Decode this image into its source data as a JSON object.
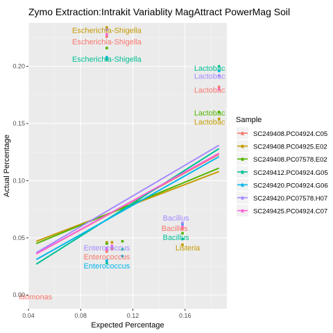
{
  "chart_data": {
    "type": "scatter",
    "title": "Zymo Extraction:Intrakit Variablity MagAttract PowerMag Soil",
    "xlabel": "Expected Percentage",
    "ylabel": "Actual Percentage",
    "xlim": [
      0.04,
      0.192
    ],
    "ylim": [
      -0.012,
      0.238
    ],
    "x_ticks": [
      0.04,
      0.08,
      0.12,
      0.16
    ],
    "x_tick_labels": [
      "0.04",
      "0.08",
      "0.12",
      "0.16"
    ],
    "y_ticks": [
      0.0,
      0.05,
      0.1,
      0.15,
      0.2
    ],
    "y_tick_labels": [
      "0.00",
      "0.05",
      "0.10",
      "0.15",
      "0.20"
    ],
    "grid": true,
    "legend": {
      "title": "Sample",
      "position": "right",
      "entries": [
        {
          "name": "SC249408.PC04924.C05",
          "color": "#F8766D"
        },
        {
          "name": "SC249408.PC04925.E02",
          "color": "#C49A00"
        },
        {
          "name": "SC249408.PC07578.E02",
          "color": "#53B400"
        },
        {
          "name": "SC249412.PC04924.G05",
          "color": "#00C094"
        },
        {
          "name": "SC249420.PC04924.G06",
          "color": "#00B6EB"
        },
        {
          "name": "SC249420.PC07578.H07",
          "color": "#A58AFF"
        },
        {
          "name": "SC249425.PC04924.C07",
          "color": "#FB61D7"
        }
      ]
    },
    "series": [
      {
        "name": "SC249408.PC04924.C05",
        "color": "#F8766D",
        "points": [
          [
            0.1,
            0.226
          ],
          [
            0.158,
            0.058
          ],
          [
            0.186,
            0.182
          ],
          [
            0.104,
            0.04
          ],
          [
            0.1,
            0.038
          ]
        ],
        "fit": [
          0.036,
          0.123
        ]
      },
      {
        "name": "SC249408.PC04925.E02",
        "color": "#C49A00",
        "points": [
          [
            0.1,
            0.234
          ],
          [
            0.158,
            0.044
          ],
          [
            0.186,
            0.154
          ],
          [
            0.104,
            0.046
          ],
          [
            0.1,
            0.046
          ]
        ],
        "fit": [
          0.047,
          0.108
        ]
      },
      {
        "name": "SC249408.PC07578.E02",
        "color": "#53B400",
        "points": [
          [
            0.1,
            0.216
          ],
          [
            0.158,
            0.054
          ],
          [
            0.186,
            0.16
          ],
          [
            0.112,
            0.047
          ],
          [
            0.1,
            0.045
          ]
        ],
        "fit": [
          0.045,
          0.111
        ]
      },
      {
        "name": "SC249412.PC04924.G05",
        "color": "#00C094",
        "points": [
          [
            0.1,
            0.206
          ],
          [
            0.158,
            0.049
          ],
          [
            0.186,
            0.2
          ],
          [
            0.112,
            0.04
          ],
          [
            0.1,
            0.028
          ]
        ],
        "fit": [
          0.027,
          0.128
        ]
      },
      {
        "name": "SC249420.PC04924.G06",
        "color": "#00B6EB",
        "points": [
          [
            0.1,
            0.208
          ],
          [
            0.158,
            0.062
          ],
          [
            0.186,
            0.196
          ],
          [
            0.112,
            0.034
          ],
          [
            0.1,
            0.03
          ]
        ],
        "fit": [
          0.031,
          0.121
        ]
      },
      {
        "name": "SC249420.PC07578.H07",
        "color": "#A58AFF",
        "points": [
          [
            0.1,
            0.232
          ],
          [
            0.158,
            0.063
          ],
          [
            0.186,
            0.192
          ],
          [
            0.104,
            0.042
          ],
          [
            0.1,
            0.041
          ]
        ],
        "fit": [
          0.037,
          0.131
        ]
      },
      {
        "name": "SC249425.PC04924.C07",
        "color": "#FB61D7",
        "points": [
          [
            0.1,
            0.228
          ],
          [
            0.158,
            0.06
          ],
          [
            0.186,
            0.18
          ],
          [
            0.104,
            0.043
          ],
          [
            0.1,
            0.04
          ]
        ],
        "fit": [
          0.036,
          0.124
        ]
      }
    ],
    "annotations": [
      {
        "text": "Escherichia-Shigella",
        "x": 0.1,
        "y": 0.2315,
        "color": "#C49A00"
      },
      {
        "text": "Escherichia-Shigella",
        "x": 0.1,
        "y": 0.2215,
        "color": "#F8766D"
      },
      {
        "text": "Escherichia-Shigella",
        "x": 0.1,
        "y": 0.2065,
        "color": "#00C094"
      },
      {
        "text": "Lactobac",
        "x": 0.1788,
        "y": 0.1985,
        "color": "#00C094"
      },
      {
        "text": "Lactobac",
        "x": 0.1788,
        "y": 0.1915,
        "color": "#A58AFF"
      },
      {
        "text": "Lactobac",
        "x": 0.1788,
        "y": 0.1795,
        "color": "#F8766D"
      },
      {
        "text": "Lactobac",
        "x": 0.1788,
        "y": 0.1595,
        "color": "#53B400"
      },
      {
        "text": "Lactobac",
        "x": 0.1788,
        "y": 0.1515,
        "color": "#C49A00"
      },
      {
        "text": "Bacillus",
        "x": 0.153,
        "y": 0.0675,
        "color": "#A58AFF"
      },
      {
        "text": "Bacillus",
        "x": 0.152,
        "y": 0.0585,
        "color": "#F8766D"
      },
      {
        "text": "Bacillus",
        "x": 0.153,
        "y": 0.0505,
        "color": "#00C094"
      },
      {
        "text": "Listeria",
        "x": 0.162,
        "y": 0.0415,
        "color": "#C49A00"
      },
      {
        "text": "Enterococcus",
        "x": 0.1,
        "y": 0.0415,
        "color": "#A58AFF"
      },
      {
        "text": "Enterococcus",
        "x": 0.1,
        "y": 0.0335,
        "color": "#F8766D"
      },
      {
        "text": "Enterococcus",
        "x": 0.1,
        "y": 0.0255,
        "color": "#00B6EB"
      },
      {
        "text": "idomonas",
        "x": 0.0455,
        "y": -0.0015,
        "color": "#F8766D"
      }
    ]
  }
}
